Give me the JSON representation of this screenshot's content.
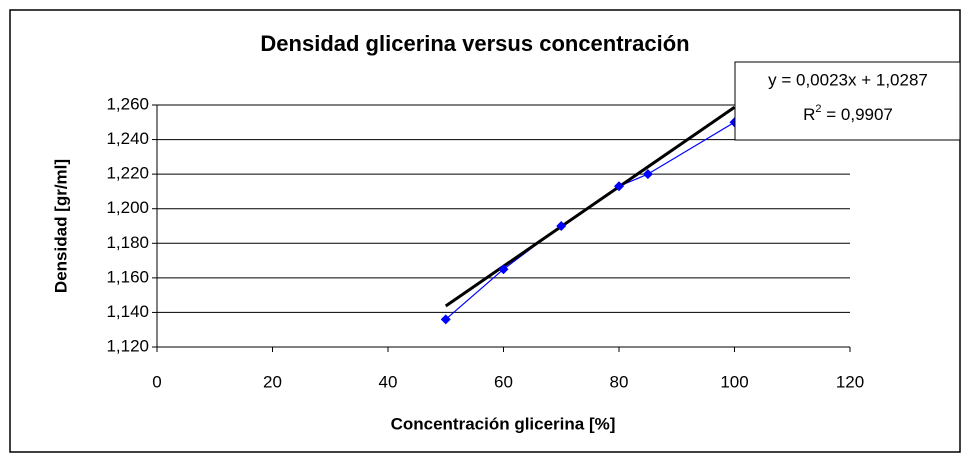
{
  "chart_data": {
    "type": "scatter",
    "title": "Densidad glicerina versus concentración",
    "xlabel": "Concentración glicerina [%]",
    "ylabel": "Densidad [gr/ml]",
    "series": [
      {
        "color": "#0000ff",
        "x": [
          50,
          60,
          70,
          80,
          85,
          100
        ],
        "values": [
          1.136,
          1.165,
          1.19,
          1.213,
          1.22,
          1.25
        ]
      }
    ],
    "trendline": {
      "slope": 0.0023,
      "intercept": 1.0287,
      "color": "#000000",
      "equation": "y = 0,0023x + 1,0287",
      "r2_symbol": "R",
      "r2_exponent": "2",
      "r2_text": " = 0,9907"
    },
    "xlim": [
      0,
      120
    ],
    "xticks": [
      0,
      20,
      40,
      60,
      80,
      100,
      120
    ],
    "ylim": [
      1.12,
      1.26
    ],
    "yticks": [
      {
        "value": 1.12,
        "label": "1,120"
      },
      {
        "value": 1.14,
        "label": "1,140"
      },
      {
        "value": 1.16,
        "label": "1,160"
      },
      {
        "value": 1.18,
        "label": "1,180"
      },
      {
        "value": 1.2,
        "label": "1,200"
      },
      {
        "value": 1.22,
        "label": "1,220"
      },
      {
        "value": 1.24,
        "label": "1,240"
      },
      {
        "value": 1.26,
        "label": "1,260"
      }
    ],
    "grid": true
  }
}
